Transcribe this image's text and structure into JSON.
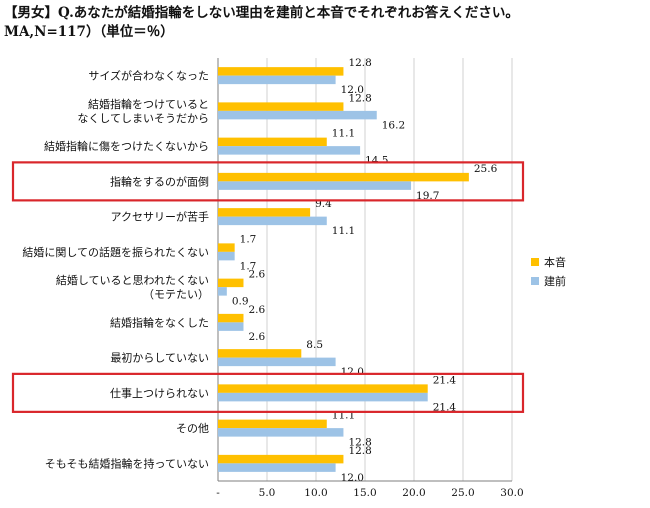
{
  "chart_data": {
    "type": "bar",
    "orientation": "horizontal",
    "title": "【男女】Q.あなたが結婚指輪をしない理由を建前と本音でそれぞれお答えください。",
    "subtitle": "MA,N=117）（単位＝％）",
    "categories": [
      [
        "サイズが合わなくなった"
      ],
      [
        "結婚指輪をつけていると",
        "なくしてしまいそうだから"
      ],
      [
        "結婚指輪に傷をつけたくないから"
      ],
      [
        "指輪をするのが面倒"
      ],
      [
        "アクセサリーが苦手"
      ],
      [
        "結婚に関しての話題を振られたくない"
      ],
      [
        "結婚していると思われたくない",
        "（モテたい）"
      ],
      [
        "結婚指輪をなくした"
      ],
      [
        "最初からしていない"
      ],
      [
        "仕事上つけられない"
      ],
      [
        "その他"
      ],
      [
        "そもそも結婚指輪を持っていない"
      ]
    ],
    "series": [
      {
        "name": "本音",
        "color": "#FFC000",
        "values": [
          12.8,
          12.8,
          11.1,
          25.6,
          9.4,
          1.7,
          2.6,
          2.6,
          8.5,
          21.4,
          11.1,
          12.8
        ]
      },
      {
        "name": "建前",
        "color": "#9DC3E6",
        "values": [
          12.0,
          16.2,
          14.5,
          19.7,
          11.1,
          1.7,
          0.9,
          2.6,
          12.0,
          21.4,
          12.8,
          12.0
        ]
      }
    ],
    "value_labels": [
      [
        "12.8",
        "12.8",
        "11.1",
        "25.6",
        "9.4",
        "1.7",
        "2.6",
        "2.6",
        "8.5",
        "21.4",
        "11.1",
        "12.8"
      ],
      [
        "12.0",
        "16.2",
        "14.5",
        "19.7",
        "11.1",
        "1.7",
        "0.9",
        "2.6",
        "12.0",
        "21.4",
        "12.8",
        "12.0"
      ]
    ],
    "xlim": [
      0,
      30
    ],
    "xticks": [
      "-",
      "5.0",
      "10.0",
      "15.0",
      "20.0",
      "25.0",
      "30.0"
    ],
    "grid": true,
    "legend": "right",
    "highlighted_categories": [
      3,
      9
    ],
    "highlight_color": "#D9262B"
  }
}
